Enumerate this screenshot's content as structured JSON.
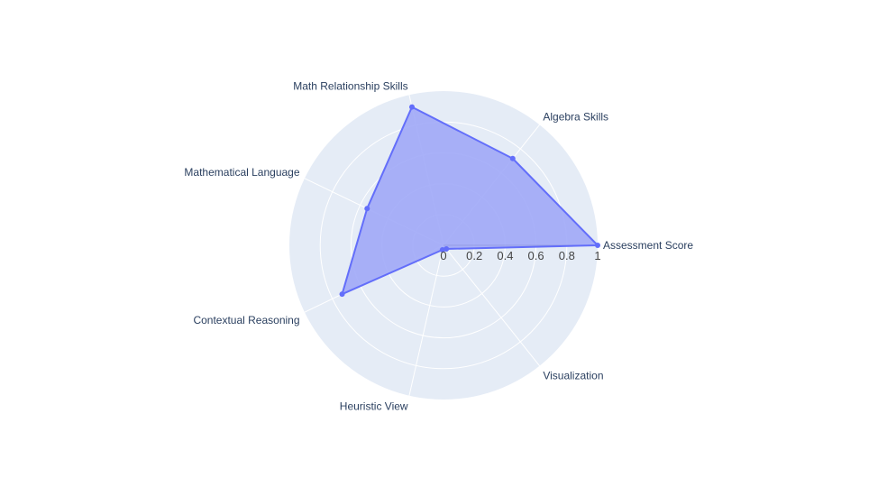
{
  "chart_data": {
    "type": "radar",
    "categories": [
      "Assessment Score",
      "Algebra Skills",
      "Math Relationship Skills",
      "Mathematical Language",
      "Contextual Reasoning",
      "Heuristic View",
      "Visualization"
    ],
    "series": [
      {
        "values": [
          1.0,
          0.72,
          0.92,
          0.55,
          0.73,
          0.03,
          0.03
        ]
      }
    ],
    "radial_range": [
      0,
      1
    ],
    "radial_tick_labels": [
      "0",
      "0.2",
      "0.4",
      "0.6",
      "0.8",
      "1"
    ],
    "rotation_deg": 0,
    "direction": "counterclockwise",
    "grid": true,
    "legend": "none",
    "colors": {
      "polar_bg": "#e5ecf6",
      "grid": "#ffffff",
      "series_line": "#636efa",
      "series_fill": "#a0a8f7",
      "label_text": "#2a3f5f",
      "tick_text": "#444444"
    }
  }
}
